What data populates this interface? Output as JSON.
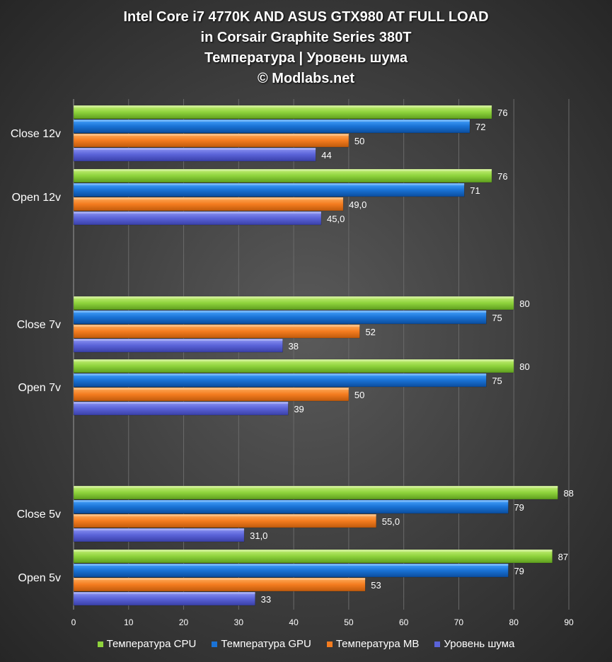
{
  "chart_data": {
    "type": "bar",
    "orientation": "horizontal",
    "title_lines": [
      "Intel Core i7 4770K  AND ASUS GTX980 AT FULL LOAD",
      "in Corsair Graphite Series 380T",
      "Температура | Уровень шума",
      "© Modlabs.net"
    ],
    "xlim": [
      0,
      90
    ],
    "xticks": [
      "0",
      "10",
      "20",
      "30",
      "40",
      "50",
      "60",
      "70",
      "80",
      "90"
    ],
    "grid": true,
    "legend_position": "bottom",
    "groups": [
      {
        "name": "Close 12v",
        "bars": [
          {
            "series": "cpu",
            "value": 76,
            "label": "76"
          },
          {
            "series": "gpu",
            "value": 72,
            "label": "72"
          },
          {
            "series": "mb",
            "value": 50,
            "label": "50"
          },
          {
            "series": "noise",
            "value": 44,
            "label": "44"
          }
        ]
      },
      {
        "name": "Open 12v",
        "bars": [
          {
            "series": "cpu",
            "value": 76,
            "label": "76"
          },
          {
            "series": "gpu",
            "value": 71,
            "label": "71"
          },
          {
            "series": "mb",
            "value": 49,
            "label": "49,0"
          },
          {
            "series": "noise",
            "value": 45,
            "label": "45,0"
          }
        ]
      },
      {
        "name": "Close 7v",
        "bars": [
          {
            "series": "cpu",
            "value": 80,
            "label": "80"
          },
          {
            "series": "gpu",
            "value": 75,
            "label": "75"
          },
          {
            "series": "mb",
            "value": 52,
            "label": "52"
          },
          {
            "series": "noise",
            "value": 38,
            "label": "38"
          }
        ]
      },
      {
        "name": "Open 7v",
        "bars": [
          {
            "series": "cpu",
            "value": 80,
            "label": "80"
          },
          {
            "series": "gpu",
            "value": 75,
            "label": "75"
          },
          {
            "series": "mb",
            "value": 50,
            "label": "50"
          },
          {
            "series": "noise",
            "value": 39,
            "label": "39"
          }
        ]
      },
      {
        "name": "Close 5v",
        "bars": [
          {
            "series": "cpu",
            "value": 88,
            "label": "88"
          },
          {
            "series": "gpu",
            "value": 79,
            "label": "79"
          },
          {
            "series": "mb",
            "value": 55,
            "label": "55,0"
          },
          {
            "series": "noise",
            "value": 31,
            "label": "31,0"
          }
        ]
      },
      {
        "name": "Open 5v",
        "bars": [
          {
            "series": "cpu",
            "value": 87,
            "label": "87"
          },
          {
            "series": "gpu",
            "value": 79,
            "label": "79"
          },
          {
            "series": "mb",
            "value": 53,
            "label": "53"
          },
          {
            "series": "noise",
            "value": 33,
            "label": "33"
          }
        ]
      }
    ],
    "series": [
      {
        "key": "cpu",
        "name": "Температура CPU",
        "color": "#8ed33c"
      },
      {
        "key": "gpu",
        "name": "Температура GPU",
        "color": "#1a73d6"
      },
      {
        "key": "mb",
        "name": "Температура MB",
        "color": "#f47c1f"
      },
      {
        "key": "noise",
        "name": "Уровень шума",
        "color": "#5a63d8"
      }
    ]
  }
}
